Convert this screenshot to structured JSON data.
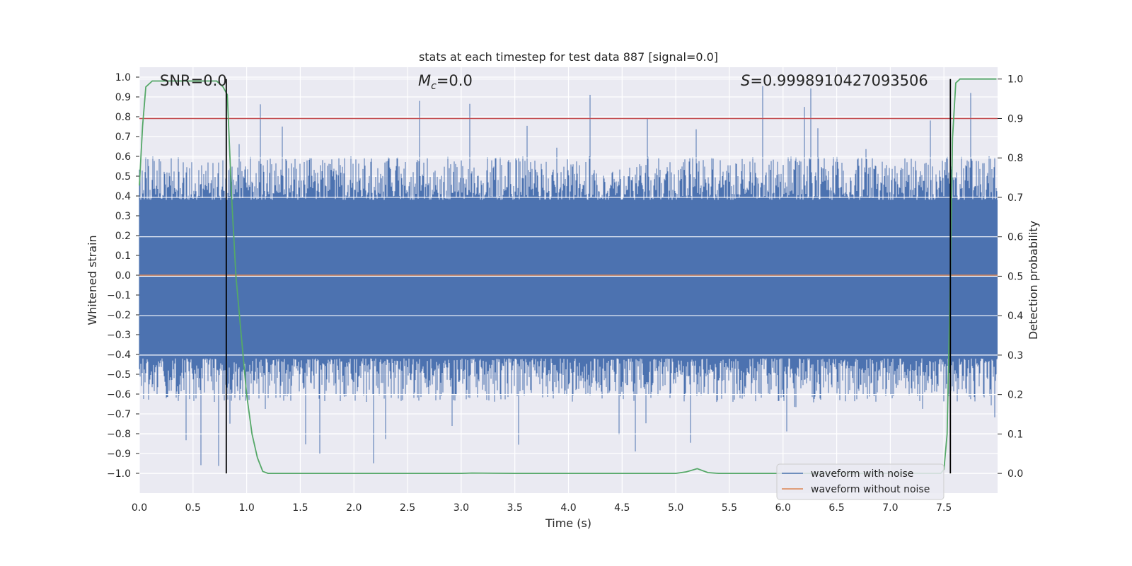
{
  "chart_data": {
    "type": "line",
    "title": "stats at each timestep for test data 887 [signal=0.0]",
    "xlabel": "Time (s)",
    "ylabel": "Whitened strain",
    "y2label": "Detection probability",
    "xlim": [
      0.0,
      8.0
    ],
    "ylim": [
      -1.1,
      1.05
    ],
    "y2lim": [
      -0.05,
      1.03
    ],
    "xticks": [
      "0.0",
      "0.5",
      "1.0",
      "1.5",
      "2.0",
      "2.5",
      "3.0",
      "3.5",
      "4.0",
      "4.5",
      "5.0",
      "5.5",
      "6.0",
      "6.5",
      "7.0",
      "7.5"
    ],
    "yticks": [
      "1.0",
      "0.9",
      "0.8",
      "0.7",
      "0.6",
      "0.5",
      "0.4",
      "0.3",
      "0.2",
      "0.1",
      "0.0",
      "−0.1",
      "−0.2",
      "−0.3",
      "−0.4",
      "−0.5",
      "−0.6",
      "−0.7",
      "−0.8",
      "−0.9",
      "−1.0"
    ],
    "y2ticks": [
      "1.0",
      "0.9",
      "0.8",
      "0.7",
      "0.6",
      "0.5",
      "0.4",
      "0.3",
      "0.2",
      "0.1",
      "0.0"
    ],
    "annotations": {
      "snr": "SNR=0.0",
      "mc_symbol": "M",
      "mc_sub": "c",
      "mc_value": "=0.0",
      "s_symbol": "S",
      "s_value": "=0.9998910427093506"
    },
    "threshold": 0.9,
    "vertical_lines": [
      0.81,
      7.56
    ],
    "legend": {
      "placement": "bottom-right",
      "entries": [
        "waveform with noise",
        "waveform without noise"
      ]
    },
    "series": [
      {
        "name": "waveform with noise",
        "color": "#4c72b0",
        "description": "whitened noise, amplitude mostly within ±0.5, spikes to ±1.0",
        "core_band": [
          -0.42,
          0.38
        ],
        "seed": 887
      },
      {
        "name": "waveform without noise",
        "color": "#dd8452",
        "values_constant": 0.0
      },
      {
        "name": "detection probability",
        "color": "#55a868",
        "axis": "right",
        "x": [
          0.0,
          0.03,
          0.06,
          0.12,
          0.2,
          0.4,
          0.6,
          0.72,
          0.78,
          0.82,
          0.86,
          0.9,
          0.95,
          1.0,
          1.05,
          1.1,
          1.15,
          1.2,
          1.5,
          2.0,
          2.5,
          3.0,
          3.1,
          3.5,
          4.0,
          4.5,
          5.0,
          5.1,
          5.2,
          5.3,
          5.4,
          6.0,
          7.0,
          7.4,
          7.47,
          7.5,
          7.53,
          7.56,
          7.58,
          7.61,
          7.65,
          7.7,
          7.99
        ],
        "values": [
          0.73,
          0.88,
          0.98,
          0.995,
          0.995,
          0.995,
          0.995,
          0.995,
          0.98,
          0.96,
          0.7,
          0.5,
          0.35,
          0.2,
          0.1,
          0.04,
          0.005,
          0.0,
          0.0,
          0.0,
          0.0,
          0.0,
          0.001,
          0.0,
          0.0,
          0.0,
          0.0,
          0.004,
          0.012,
          0.002,
          0.0,
          0.0,
          0.0,
          0.0,
          0.0,
          0.01,
          0.1,
          0.5,
          0.85,
          0.99,
          1.0,
          1.0,
          1.0
        ]
      },
      {
        "name": "threshold",
        "color": "#c44e52",
        "axis": "right",
        "values_constant": 0.9
      }
    ],
    "colors": {
      "background": "#eaeaf2",
      "grid": "#ffffff",
      "noise": "#4c72b0",
      "clean": "#dd8452",
      "probability": "#55a868",
      "threshold": "#c44e52",
      "vline": "#000000"
    }
  }
}
